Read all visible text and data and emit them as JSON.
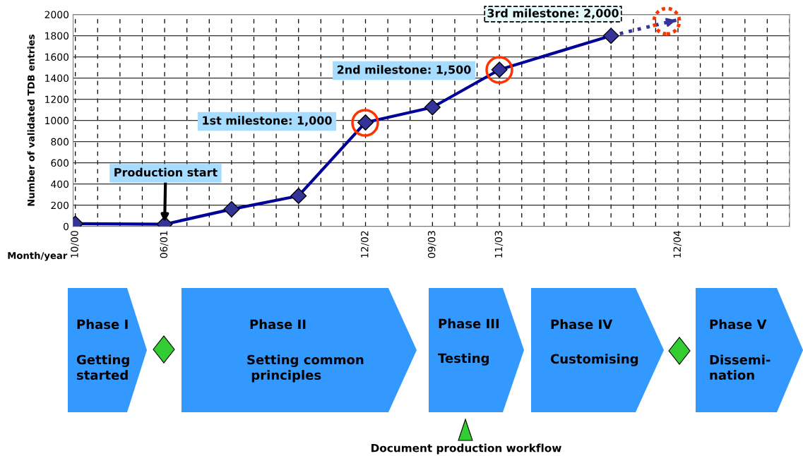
{
  "chart_data": {
    "type": "line",
    "ylabel": "Number of validated TDB entries",
    "xlabel": "Month/year",
    "categories": [
      "10/00",
      null,
      null,
      null,
      "06/01",
      null,
      null,
      null,
      null,
      null,
      null,
      null,
      null,
      "12/02",
      null,
      null,
      "09/03",
      null,
      null,
      "11/03",
      null,
      null,
      null,
      null,
      null,
      null,
      null,
      "12/04",
      null,
      null,
      null,
      null,
      null
    ],
    "ylim": [
      0,
      2000
    ],
    "yticks": [
      0,
      200,
      400,
      600,
      800,
      1000,
      1200,
      1400,
      1600,
      1800,
      2000
    ],
    "grid": true,
    "series": [
      {
        "color": "#000099",
        "marker": "diamond",
        "line_style": "solid",
        "values": [
          25,
          null,
          null,
          null,
          20,
          null,
          null,
          162,
          null,
          null,
          288,
          null,
          null,
          981,
          null,
          null,
          1124,
          null,
          null,
          1479,
          null,
          null,
          null,
          null,
          1799,
          null,
          null,
          null,
          null,
          null,
          null,
          null,
          null
        ]
      },
      {
        "color": "#333399",
        "line_style": "dotted",
        "values": [
          null,
          null,
          null,
          null,
          null,
          null,
          null,
          null,
          null,
          null,
          null,
          null,
          null,
          null,
          null,
          null,
          null,
          null,
          null,
          null,
          null,
          null,
          null,
          null,
          1799,
          null,
          null,
          1950,
          null,
          null,
          null,
          null,
          null
        ]
      }
    ],
    "annotations": [
      {
        "text": "Production start",
        "x": "06/01",
        "y": 20
      },
      "1st milestone: 1,000",
      "2nd milestone: 1,500",
      "3rd milestone: 2,000",
      "Phase I",
      "Getting\nstarted",
      "Phase II",
      "Setting common\n principles",
      "Phase III",
      "Testing",
      "Phase IV",
      "Customising",
      "Phase V",
      "Dissemi-\nnation",
      "Document production workflow"
    ]
  }
}
